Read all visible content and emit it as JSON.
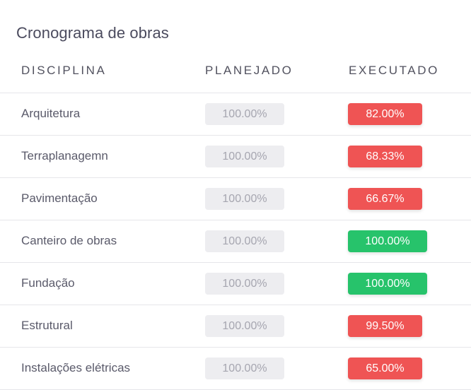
{
  "page": {
    "title": "Cronograma de obras"
  },
  "table": {
    "headers": [
      "DISCIPLINA",
      "PLANEJADO",
      "EXECUTADO"
    ],
    "rows": [
      {
        "discipline": "Arquitetura",
        "planned": "100.00%",
        "executed": "82.00%",
        "status_color": "#ef5454"
      },
      {
        "discipline": "Terraplanagemn",
        "planned": "100.00%",
        "executed": "68.33%",
        "status_color": "#ef5454"
      },
      {
        "discipline": "Pavimentação",
        "planned": "100.00%",
        "executed": "66.67%",
        "status_color": "#ef5454"
      },
      {
        "discipline": "Canteiro de obras",
        "planned": "100.00%",
        "executed": "100.00%",
        "status_color": "#27c36b"
      },
      {
        "discipline": "Fundação",
        "planned": "100.00%",
        "executed": "100.00%",
        "status_color": "#27c36b"
      },
      {
        "discipline": "Estrutural",
        "planned": "100.00%",
        "executed": "99.50%",
        "status_color": "#ef5454"
      },
      {
        "discipline": "Instalações elétricas",
        "planned": "100.00%",
        "executed": "65.00%",
        "status_color": "#ef5454"
      }
    ]
  },
  "colors": {
    "danger": "#ef5454",
    "success": "#27c36b",
    "neutral_badge": "#ededf0"
  }
}
